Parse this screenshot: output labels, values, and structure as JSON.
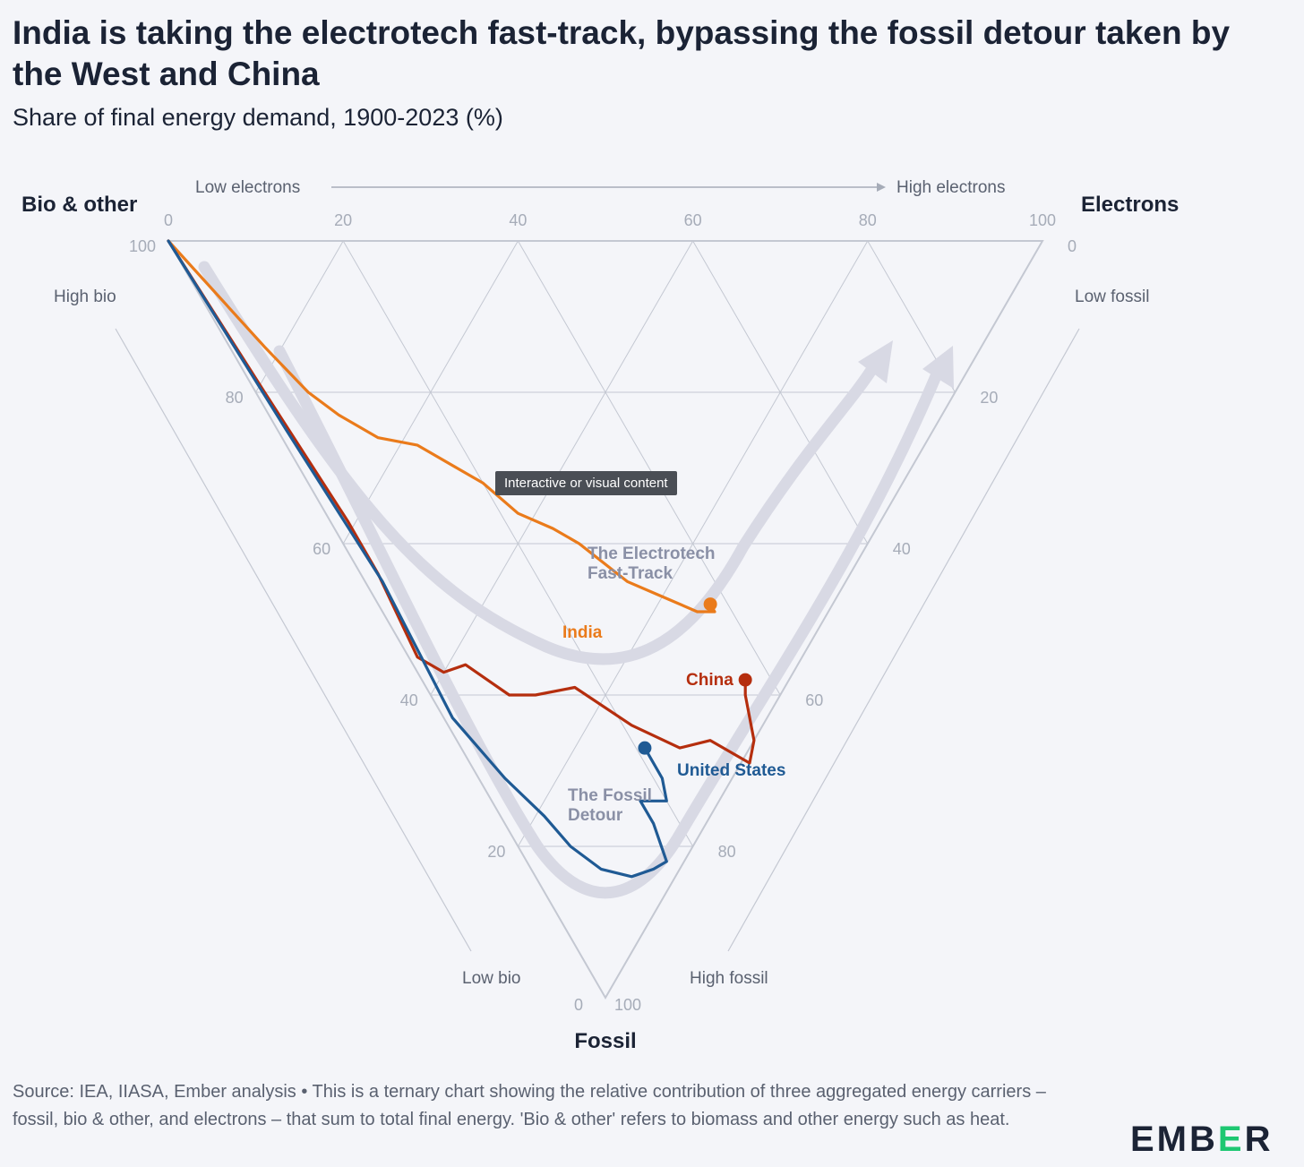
{
  "title": "India is taking the electrotech fast-track, bypassing the fossil detour taken by the West and China",
  "subtitle": "Share of final energy demand, 1900-2023 (%)",
  "tooltip": "Interactive or visual content",
  "source": "Source: IEA, IIASA, Ember analysis • This is a ternary chart showing the relative contribution of three aggregated energy carriers – fossil, bio & other, and electrons – that sum to total final energy. 'Bio & other' refers to biomass and other energy such as heat.",
  "logo": {
    "part1": "EMB",
    "part2": "E",
    "part3": "R"
  },
  "colors": {
    "india": "#ea7b1b",
    "china": "#b52e0e",
    "united_states": "#1f5a94",
    "path": "#d8d9e4",
    "grid": "#c4c8d2",
    "tick": "#a6acb8"
  },
  "chart_data": {
    "type": "ternary",
    "axes": {
      "bio": {
        "label": "Bio & other",
        "high_label": "High bio",
        "low_label": "Low bio",
        "ticks": [
          "100",
          "80",
          "60",
          "40",
          "20",
          "0"
        ]
      },
      "electrons": {
        "label": "Electrons",
        "low_label": "Low electrons",
        "high_label": "High electrons",
        "ticks": [
          "0",
          "20",
          "40",
          "60",
          "80",
          "100"
        ]
      },
      "fossil": {
        "label": "Fossil",
        "low_label": "Low fossil",
        "high_label": "High fossil",
        "ticks": [
          "0",
          "20",
          "40",
          "60",
          "80",
          "100"
        ]
      }
    },
    "annotations": {
      "fast_track": [
        "The Electrotech",
        "Fast-Track"
      ],
      "fossil_detour": [
        "The Fossil",
        "Detour"
      ]
    },
    "series": [
      {
        "name": "India",
        "key": "india",
        "points": [
          {
            "electrons": 0,
            "fossil": 0
          },
          {
            "electrons": 4,
            "fossil": 14
          },
          {
            "electrons": 6,
            "fossil": 20
          },
          {
            "electrons": 8,
            "fossil": 23
          },
          {
            "electrons": 11,
            "fossil": 26
          },
          {
            "electrons": 15,
            "fossil": 27
          },
          {
            "electrons": 18,
            "fossil": 30
          },
          {
            "electrons": 20,
            "fossil": 32
          },
          {
            "electrons": 22,
            "fossil": 36
          },
          {
            "electrons": 25,
            "fossil": 38
          },
          {
            "electrons": 27,
            "fossil": 40
          },
          {
            "electrons": 30,
            "fossil": 45
          },
          {
            "electrons": 33,
            "fossil": 47
          },
          {
            "electrons": 36,
            "fossil": 49
          },
          {
            "electrons": 38,
            "fossil": 49
          },
          {
            "electrons": 38,
            "fossil": 48
          }
        ]
      },
      {
        "name": "China",
        "key": "china",
        "points": [
          {
            "electrons": 0,
            "fossil": 0
          },
          {
            "electrons": 1,
            "fossil": 20
          },
          {
            "electrons": 2,
            "fossil": 37
          },
          {
            "electrons": 2,
            "fossil": 44
          },
          {
            "electrons": 1,
            "fossil": 55
          },
          {
            "electrons": 3,
            "fossil": 57
          },
          {
            "electrons": 6,
            "fossil": 56
          },
          {
            "electrons": 9,
            "fossil": 60
          },
          {
            "electrons": 12,
            "fossil": 60
          },
          {
            "electrons": 17,
            "fossil": 59
          },
          {
            "electrons": 21,
            "fossil": 64
          },
          {
            "electrons": 25,
            "fossil": 67
          },
          {
            "electrons": 29,
            "fossil": 66
          },
          {
            "electrons": 32,
            "fossil": 69
          },
          {
            "electrons": 34,
            "fossil": 66
          },
          {
            "electrons": 36,
            "fossil": 60
          },
          {
            "electrons": 37,
            "fossil": 58
          }
        ]
      },
      {
        "name": "United States",
        "key": "united_states",
        "points": [
          {
            "electrons": 0,
            "fossil": 0
          },
          {
            "electrons": 1,
            "fossil": 25
          },
          {
            "electrons": 2,
            "fossil": 45
          },
          {
            "electrons": 1,
            "fossil": 63
          },
          {
            "electrons": 3,
            "fossil": 71
          },
          {
            "electrons": 5,
            "fossil": 76
          },
          {
            "electrons": 6,
            "fossil": 80
          },
          {
            "electrons": 8,
            "fossil": 83
          },
          {
            "electrons": 11,
            "fossil": 84
          },
          {
            "electrons": 14,
            "fossil": 83
          },
          {
            "electrons": 16,
            "fossil": 82
          },
          {
            "electrons": 17,
            "fossil": 77
          },
          {
            "electrons": 17,
            "fossil": 74
          },
          {
            "electrons": 20,
            "fossil": 74
          },
          {
            "electrons": 21,
            "fossil": 71
          },
          {
            "electrons": 21,
            "fossil": 67
          }
        ]
      }
    ]
  }
}
